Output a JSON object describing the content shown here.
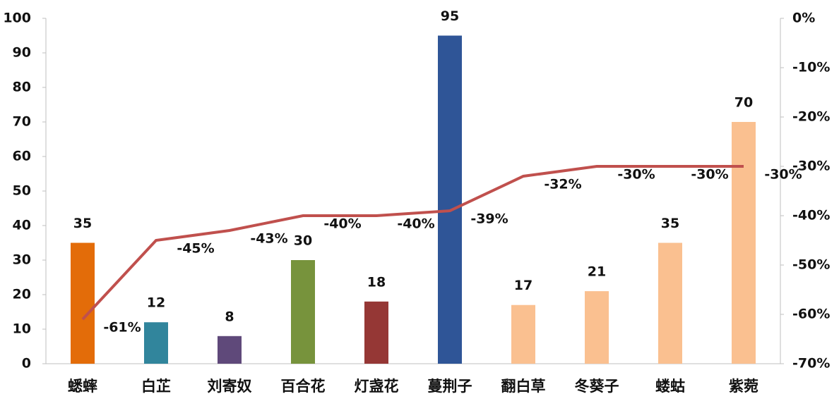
{
  "chart_data": {
    "type": "bar",
    "categories": [
      "蟋蟀",
      "白芷",
      "刘寄奴",
      "百合花",
      "灯盏花",
      "蔓荆子",
      "翻白草",
      "冬葵子",
      "蝼蛄",
      "紫菀"
    ],
    "bars": {
      "values": [
        35,
        12,
        8,
        30,
        18,
        95,
        17,
        21,
        35,
        70
      ],
      "colors": [
        "#e36c09",
        "#31859c",
        "#5f497a",
        "#77933c",
        "#953735",
        "#2f5597",
        "#fac090",
        "#fac090",
        "#fac090",
        "#fac090"
      ]
    },
    "line": {
      "axis": "y2",
      "color": "#c0504d",
      "values": [
        -61,
        -45,
        -43,
        -40,
        -40,
        -39,
        -32,
        -30,
        -30,
        -30
      ],
      "value_labels": [
        "-61%",
        "-45%",
        "-43%",
        "-40%",
        "-40%",
        "-39%",
        "-32%",
        "-30%",
        "-30%",
        "-30%"
      ]
    },
    "ylim": [
      0,
      100
    ],
    "yticks": [
      0,
      10,
      20,
      30,
      40,
      50,
      60,
      70,
      80,
      90,
      100
    ],
    "y2lim": [
      -70,
      0
    ],
    "y2ticks": [
      {
        "value": 0,
        "label": "0%"
      },
      {
        "value": -10,
        "label": "-10%"
      },
      {
        "value": -20,
        "label": "-20%"
      },
      {
        "value": -30,
        "label": "-30%"
      },
      {
        "value": -40,
        "label": "-40%"
      },
      {
        "value": -50,
        "label": "-50%"
      },
      {
        "value": -60,
        "label": "-60%"
      },
      {
        "value": -70,
        "label": "-70%"
      }
    ]
  }
}
